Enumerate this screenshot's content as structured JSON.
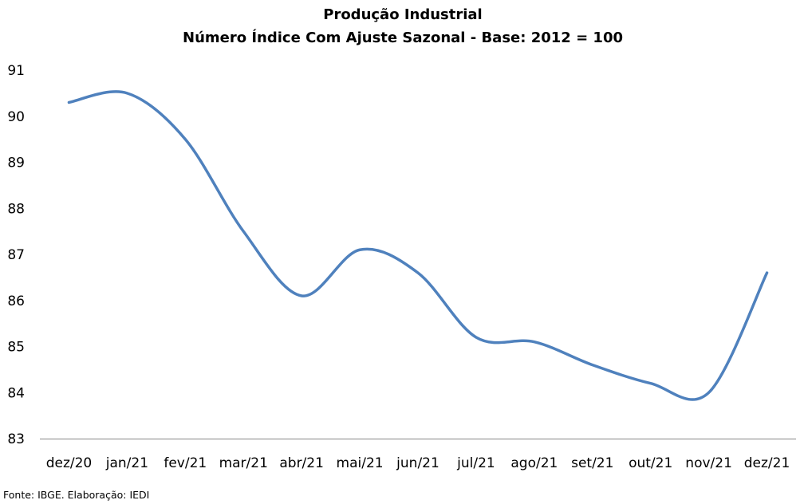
{
  "chart_data": {
    "type": "line",
    "title": "Produção Industrial",
    "subtitle": "Número Índice Com Ajuste Sazonal - Base: 2012 = 100",
    "xlabel": "",
    "ylabel": "",
    "categories": [
      "dez/20",
      "jan/21",
      "fev/21",
      "mar/21",
      "abr/21",
      "mai/21",
      "jun/21",
      "jul/21",
      "ago/21",
      "set/21",
      "out/21",
      "nov/21",
      "dez/21"
    ],
    "series": [
      {
        "color": "#4F81BD",
        "values": [
          90.3,
          90.5,
          89.5,
          87.5,
          86.1,
          87.1,
          86.6,
          85.2,
          85.1,
          84.6,
          84.2,
          84.0,
          86.6
        ]
      }
    ],
    "ylim": [
      83,
      91
    ],
    "yticks": [
      "83",
      "84",
      "85",
      "86",
      "87",
      "88",
      "89",
      "90",
      "91"
    ],
    "grid": false,
    "legend": "none",
    "source": "Fonte: IBGE. Elaboração: IEDI"
  }
}
